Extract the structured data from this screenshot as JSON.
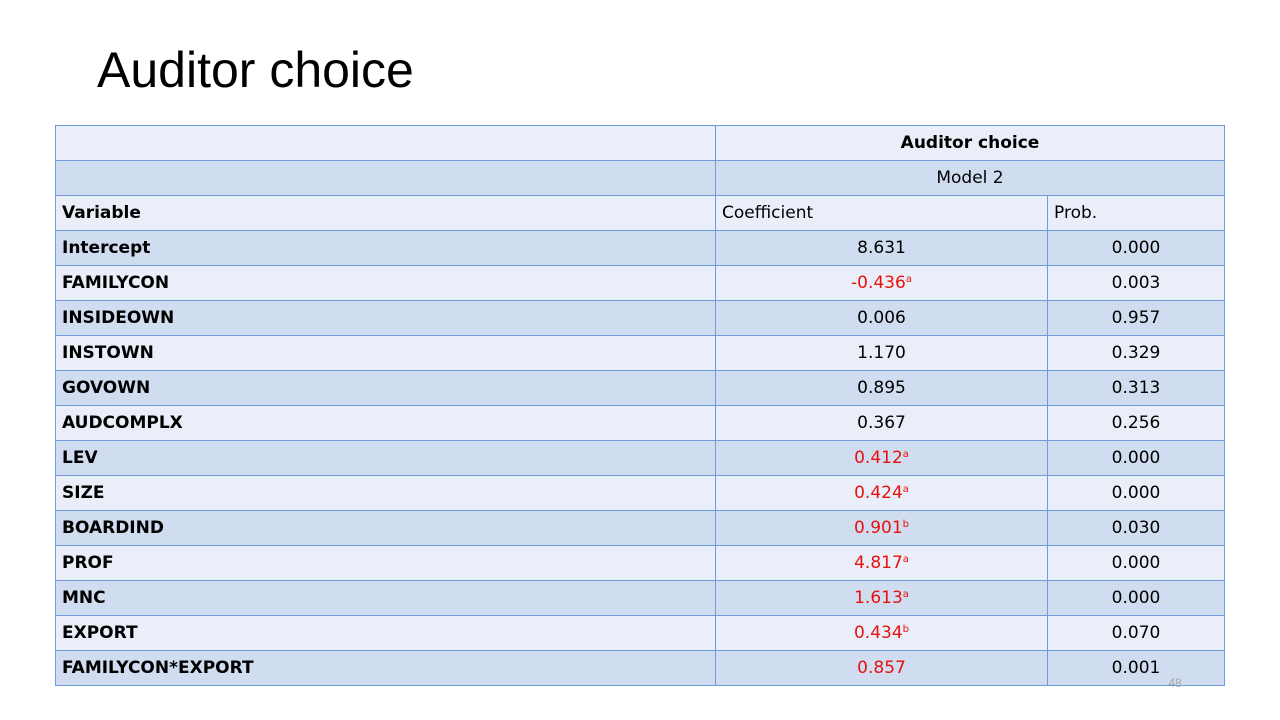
{
  "title": "Auditor choice",
  "table": {
    "header_title": "Auditor choice",
    "model_label": "Model 2",
    "col_variable": "Variable",
    "col_coefficient": "Coefficient",
    "col_prob": "Prob.",
    "rows": [
      {
        "variable": "Intercept",
        "coefficient": "8.631",
        "sig": "",
        "prob": "0.000"
      },
      {
        "variable": "FAMILYCON",
        "coefficient": "-0.436",
        "sig": "a",
        "prob": "0.003"
      },
      {
        "variable": "INSIDEOWN",
        "coefficient": "0.006",
        "sig": "",
        "prob": "0.957"
      },
      {
        "variable": "INSTOWN",
        "coefficient": "1.170",
        "sig": "",
        "prob": "0.329"
      },
      {
        "variable": "GOVOWN",
        "coefficient": "0.895",
        "sig": "",
        "prob": "0.313"
      },
      {
        "variable": "AUDCOMPLX",
        "coefficient": "0.367",
        "sig": "",
        "prob": "0.256"
      },
      {
        "variable": "LEV",
        "coefficient": "0.412",
        "sig": "a",
        "prob": "0.000"
      },
      {
        "variable": "SIZE",
        "coefficient": "0.424",
        "sig": "a",
        "prob": "0.000"
      },
      {
        "variable": "BOARDIND",
        "coefficient": "0.901",
        "sig": "b",
        "prob": "0.030"
      },
      {
        "variable": "PROF",
        "coefficient": "4.817",
        "sig": "a",
        "prob": "0.000"
      },
      {
        "variable": "MNC",
        "coefficient": "1.613",
        "sig": "a",
        "prob": "0.000"
      },
      {
        "variable": "EXPORT",
        "coefficient": "0.434",
        "sig": "b",
        "prob": "0.070"
      },
      {
        "variable": "FAMILYCON*EXPORT",
        "coefficient": "0.857",
        "sig": "",
        "prob": "0.001"
      }
    ]
  },
  "highlighted_rows": [
    1,
    6,
    7,
    8,
    9,
    10,
    11,
    12
  ],
  "colors": {
    "highlight": "#e8120c",
    "border": "#6f9bd8",
    "row_light": "#e9eef8",
    "row_dark": "#d0dcef"
  },
  "page_number": "48"
}
